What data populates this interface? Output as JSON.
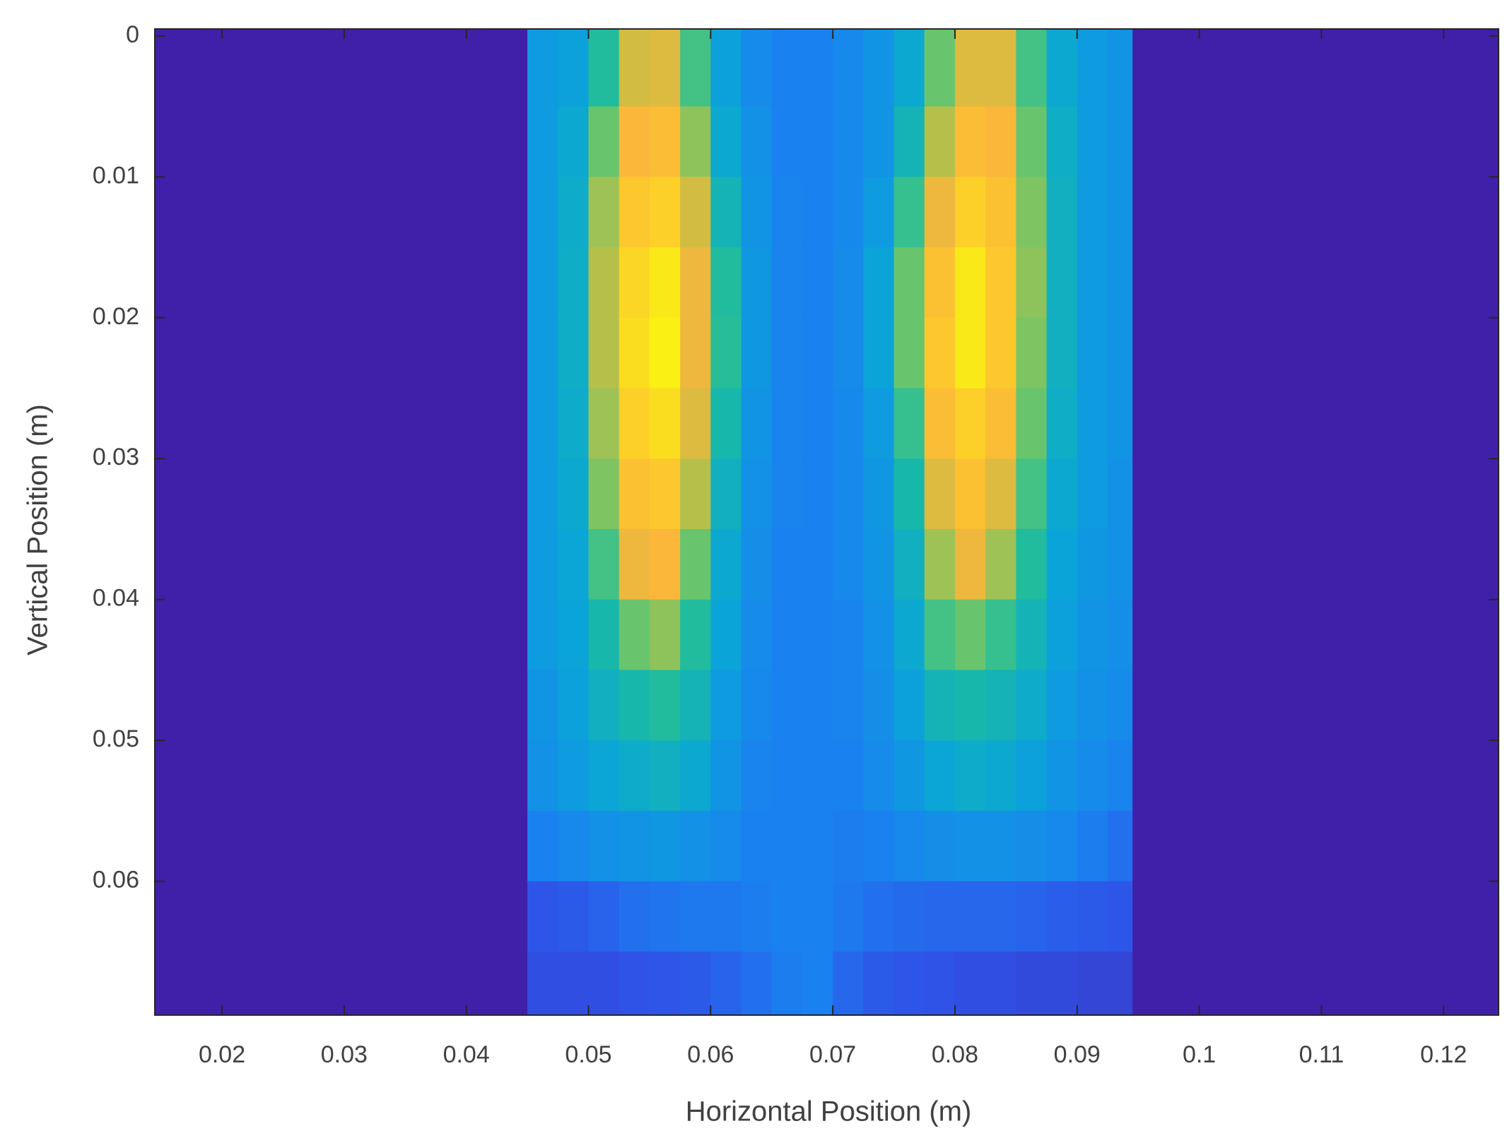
{
  "chart_data": {
    "type": "heatmap",
    "x_label": "Horizontal Position (m)",
    "y_label": "Vertical Position (m)",
    "xlim": [
      0.0145,
      0.1245
    ],
    "ylim": [
      -0.0005,
      0.0695
    ],
    "y_reversed": true,
    "xticks": [
      0.02,
      0.03,
      0.04,
      0.05,
      0.06,
      0.07,
      0.08,
      0.09,
      0.1,
      0.11,
      0.12
    ],
    "yticks": [
      0,
      0.01,
      0.02,
      0.03,
      0.04,
      0.05,
      0.06
    ],
    "background": "#4020a8",
    "clim": [
      0,
      1
    ],
    "colormap": [
      "#3e26a8",
      "#2f52e8",
      "#1a82f0",
      "#0aa5d8",
      "#1cbca0",
      "#6cc56a",
      "#c2bf45",
      "#fbb63a",
      "#fcd226",
      "#f9fb0e"
    ],
    "x_bins": [
      0.045,
      0.0475,
      0.05,
      0.0525,
      0.055,
      0.0575,
      0.06,
      0.0625,
      0.065,
      0.0675,
      0.07,
      0.0725,
      0.075,
      0.0775,
      0.08,
      0.0825,
      0.085,
      0.0875,
      0.09,
      0.0925,
      0.0945
    ],
    "y_bins": [
      -0.0005,
      0.005,
      0.01,
      0.015,
      0.02,
      0.025,
      0.03,
      0.035,
      0.04,
      0.045,
      0.05,
      0.055,
      0.06,
      0.065,
      0.0695
    ],
    "values": [
      [
        0.3,
        0.32,
        0.45,
        0.7,
        0.72,
        0.5,
        0.32,
        0.25,
        0.22,
        0.22,
        0.24,
        0.28,
        0.35,
        0.55,
        0.72,
        0.72,
        0.5,
        0.35,
        0.3,
        0.28
      ],
      [
        0.3,
        0.35,
        0.55,
        0.78,
        0.8,
        0.6,
        0.35,
        0.27,
        0.22,
        0.22,
        0.24,
        0.28,
        0.4,
        0.65,
        0.8,
        0.78,
        0.55,
        0.37,
        0.3,
        0.28
      ],
      [
        0.3,
        0.36,
        0.62,
        0.85,
        0.88,
        0.7,
        0.4,
        0.28,
        0.23,
        0.22,
        0.24,
        0.3,
        0.48,
        0.75,
        0.88,
        0.82,
        0.58,
        0.38,
        0.3,
        0.28
      ],
      [
        0.3,
        0.37,
        0.65,
        0.9,
        0.95,
        0.75,
        0.45,
        0.29,
        0.23,
        0.22,
        0.25,
        0.33,
        0.55,
        0.82,
        0.95,
        0.85,
        0.6,
        0.38,
        0.3,
        0.28
      ],
      [
        0.3,
        0.37,
        0.65,
        0.92,
        0.97,
        0.75,
        0.46,
        0.29,
        0.23,
        0.22,
        0.25,
        0.33,
        0.55,
        0.85,
        0.95,
        0.85,
        0.58,
        0.38,
        0.3,
        0.28
      ],
      [
        0.3,
        0.36,
        0.62,
        0.88,
        0.92,
        0.72,
        0.42,
        0.28,
        0.23,
        0.22,
        0.24,
        0.3,
        0.48,
        0.8,
        0.88,
        0.8,
        0.55,
        0.37,
        0.3,
        0.28
      ],
      [
        0.3,
        0.35,
        0.58,
        0.82,
        0.85,
        0.65,
        0.38,
        0.27,
        0.23,
        0.22,
        0.24,
        0.29,
        0.42,
        0.72,
        0.82,
        0.72,
        0.5,
        0.35,
        0.3,
        0.27
      ],
      [
        0.3,
        0.34,
        0.5,
        0.75,
        0.78,
        0.55,
        0.35,
        0.26,
        0.22,
        0.22,
        0.24,
        0.28,
        0.38,
        0.62,
        0.75,
        0.62,
        0.45,
        0.33,
        0.29,
        0.27
      ],
      [
        0.3,
        0.33,
        0.42,
        0.55,
        0.6,
        0.45,
        0.33,
        0.25,
        0.22,
        0.22,
        0.23,
        0.27,
        0.35,
        0.5,
        0.55,
        0.48,
        0.4,
        0.32,
        0.28,
        0.26
      ],
      [
        0.28,
        0.32,
        0.38,
        0.42,
        0.45,
        0.4,
        0.3,
        0.24,
        0.22,
        0.22,
        0.23,
        0.26,
        0.32,
        0.4,
        0.42,
        0.4,
        0.36,
        0.3,
        0.27,
        0.25
      ],
      [
        0.27,
        0.3,
        0.34,
        0.36,
        0.38,
        0.35,
        0.28,
        0.23,
        0.22,
        0.22,
        0.22,
        0.25,
        0.29,
        0.34,
        0.36,
        0.35,
        0.32,
        0.28,
        0.25,
        0.23
      ],
      [
        0.22,
        0.24,
        0.27,
        0.28,
        0.29,
        0.27,
        0.25,
        0.22,
        0.22,
        0.22,
        0.21,
        0.22,
        0.24,
        0.26,
        0.27,
        0.27,
        0.26,
        0.24,
        0.21,
        0.18
      ],
      [
        0.12,
        0.13,
        0.15,
        0.18,
        0.19,
        0.2,
        0.2,
        0.21,
        0.22,
        0.22,
        0.2,
        0.18,
        0.17,
        0.16,
        0.16,
        0.16,
        0.15,
        0.14,
        0.13,
        0.12
      ],
      [
        0.1,
        0.1,
        0.1,
        0.11,
        0.12,
        0.13,
        0.15,
        0.18,
        0.21,
        0.22,
        0.16,
        0.13,
        0.12,
        0.11,
        0.1,
        0.1,
        0.09,
        0.09,
        0.08,
        0.08
      ]
    ]
  }
}
